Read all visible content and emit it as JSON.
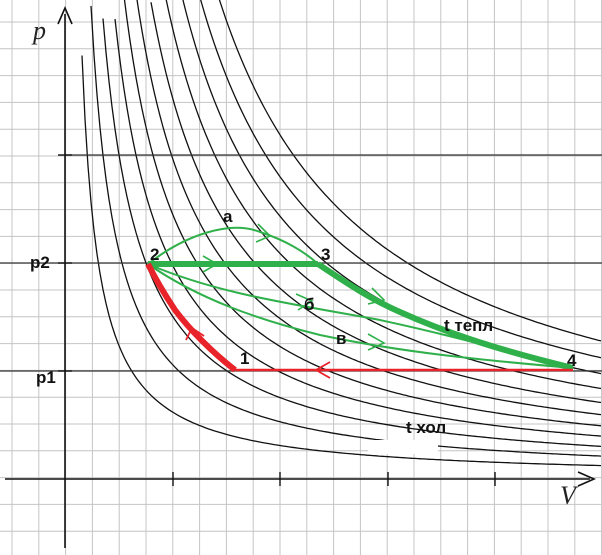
{
  "axes": {
    "y_label": "p",
    "x_label": "V"
  },
  "pressure_labels": {
    "p2": "p2",
    "p1": "p1"
  },
  "points": {
    "p1_label": "1",
    "p2_label": "2",
    "p3_label": "3",
    "p4_label": "4"
  },
  "path_labels": {
    "a": "а",
    "b": "б",
    "v": "в"
  },
  "isotherm_labels": {
    "hot": "t тепл",
    "cold": "t хол"
  },
  "colors": {
    "green": "#2fb04a",
    "red": "#e8242a",
    "grid": "#bdbdbd",
    "isotherm": "#000000"
  }
}
